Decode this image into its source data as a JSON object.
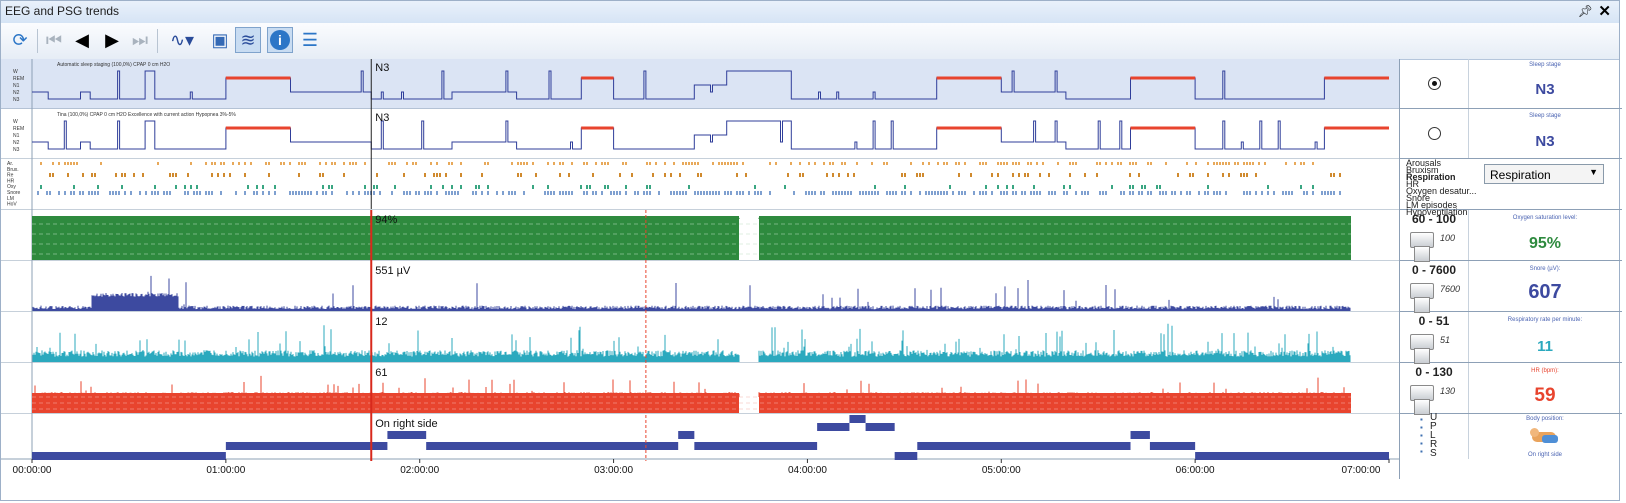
{
  "window": {
    "title": "EEG and PSG trends",
    "pin_icon": "pin-icon",
    "close_icon": "close-icon"
  },
  "toolbar": {
    "buttons": [
      {
        "name": "refresh-button",
        "icon": "refresh-icon"
      },
      {
        "name": "first-button",
        "icon": "skip-first-icon"
      },
      {
        "name": "prev-button",
        "icon": "prev-icon"
      },
      {
        "name": "next-button",
        "icon": "next-icon"
      },
      {
        "name": "last-button",
        "icon": "skip-last-icon"
      },
      {
        "name": "trend-options-button",
        "icon": "waveform-icon"
      },
      {
        "name": "save-button",
        "icon": "save-icon"
      },
      {
        "name": "signal-button",
        "icon": "signal-icon"
      },
      {
        "name": "info-button",
        "icon": "info-icon"
      },
      {
        "name": "list-button",
        "icon": "list-icon"
      }
    ]
  },
  "hypnograms": [
    {
      "label_small": "Automatic sleep staging  (100,0%)  CPAP 0 cm H2O",
      "stage_labels": [
        "W",
        "REM",
        "N1",
        "N2",
        "N3"
      ],
      "current": "N3",
      "panel_title": "Sleep stage",
      "panel_value": "N3",
      "selected": true
    },
    {
      "label_small": "Tina  (100,0%)  CPAP 0 cm H2O    Excellence with current action Hypopnea 3%-5%",
      "stage_labels": [
        "W",
        "REM",
        "N1",
        "N2",
        "N3"
      ],
      "current": "N3",
      "panel_title": "Sleep stage",
      "panel_value": "N3",
      "selected": false
    }
  ],
  "events": {
    "row_labels": [
      "Ar.",
      "Brux.",
      "Re",
      "HR",
      "Oxy",
      "Snore",
      "LM",
      "HoV"
    ],
    "list": [
      "Arousals",
      "Bruxism",
      "Respiration",
      "HR",
      "Oxygen desatur...",
      "Snore",
      "LM episodes",
      "Hypoventilation"
    ],
    "selected": "Respiration",
    "colors": {
      "arousal": "#e8a95a",
      "bruxism": "#d08a2e",
      "resp": "#3aa682",
      "hr": "#7fa0d0"
    }
  },
  "signals": [
    {
      "name": "spo2",
      "current_label": "94%",
      "range": "60 - 100",
      "max": "100",
      "panel_title": "Oxygen saturation level:",
      "panel_value": "95%",
      "color": "#2e8a3e"
    },
    {
      "name": "snore",
      "current_label": "551 µV",
      "range": "0 - 7600",
      "max": "7600",
      "panel_title": "Snore (µV):",
      "panel_value": "607",
      "color": "#3d4aa0"
    },
    {
      "name": "resp-rate",
      "current_label": "12",
      "range": "0 - 51",
      "max": "51",
      "panel_title": "Respiratory rate per minute:",
      "panel_value": "11",
      "color": "#2ba9be"
    },
    {
      "name": "hr",
      "current_label": "61",
      "range": "0 - 130",
      "max": "130",
      "panel_title": "HR (bpm):",
      "panel_value": "59",
      "color": "#e8442e"
    },
    {
      "name": "position",
      "current_label": "On right side",
      "position_labels": [
        "U",
        "P",
        "L",
        "R",
        "S"
      ],
      "panel_title": "Body position:",
      "panel_value": "On right side",
      "color": "#3d4aa0"
    }
  ],
  "time_axis": {
    "ticks": [
      "00:00:00",
      "01:00:00",
      "02:00:00",
      "03:00:00",
      "04:00:00",
      "05:00:00",
      "06:00:00",
      "07:00:00"
    ]
  },
  "chart_data": {
    "type": "line",
    "x_unit": "time",
    "cursor_time": "01:45:00",
    "marker_time": "03:10:00",
    "sleep_stage_series": [
      [
        "00:00",
        "N2"
      ],
      [
        "00:05",
        "N3"
      ],
      [
        "00:15",
        "N2"
      ],
      [
        "00:18",
        "N3"
      ],
      [
        "00:35",
        "W"
      ],
      [
        "00:38",
        "N3"
      ],
      [
        "01:00",
        "REM"
      ],
      [
        "01:20",
        "N2"
      ],
      [
        "01:45",
        "N3"
      ],
      [
        "02:10",
        "N2"
      ],
      [
        "02:30",
        "N3"
      ],
      [
        "02:50",
        "REM"
      ],
      [
        "03:00",
        "N3"
      ],
      [
        "03:25",
        "N1"
      ],
      [
        "03:35",
        "W"
      ],
      [
        "03:55",
        "N3"
      ],
      [
        "04:40",
        "REM"
      ],
      [
        "05:00",
        "N2"
      ],
      [
        "05:20",
        "N3"
      ],
      [
        "05:40",
        "REM"
      ],
      [
        "06:00",
        "N3"
      ],
      [
        "06:40",
        "REM"
      ],
      [
        "07:00",
        "REM"
      ]
    ]
  }
}
